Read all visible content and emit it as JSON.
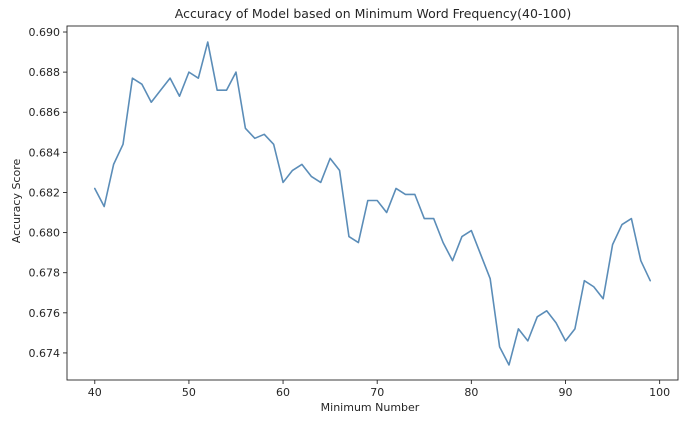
{
  "chart_data": {
    "type": "line",
    "title": "Accuracy of Model based on Minimum Word Frequency(40-100)",
    "xlabel": "Minimum Number",
    "ylabel": "Accuracy Score",
    "xlim": [
      37.05,
      101.95
    ],
    "ylim": [
      0.67265,
      0.6903
    ],
    "xticks": [
      40,
      50,
      60,
      70,
      80,
      90,
      100
    ],
    "yticks": [
      0.674,
      0.676,
      0.678,
      0.68,
      0.682,
      0.684,
      0.686,
      0.688,
      0.69
    ],
    "ytick_labels": [
      "0.674",
      "0.676",
      "0.678",
      "0.680",
      "0.682",
      "0.684",
      "0.686",
      "0.688",
      "0.690"
    ],
    "grid": false,
    "line_color": "#5b8db8",
    "series": [
      {
        "x": [
          40,
          41,
          42,
          43,
          44,
          45,
          46,
          47,
          48,
          49,
          50,
          51,
          52,
          53,
          54,
          55,
          56,
          57,
          58,
          59,
          60,
          61,
          62,
          63,
          64,
          65,
          66,
          67,
          68,
          69,
          70,
          71,
          72,
          73,
          74,
          75,
          76,
          77,
          78,
          79,
          80,
          81,
          82,
          83,
          84,
          85,
          86,
          87,
          88,
          89,
          90,
          91,
          92,
          93,
          94,
          95,
          96,
          97,
          98,
          99
        ],
        "values": [
          0.6822,
          0.6813,
          0.6834,
          0.6844,
          0.6877,
          0.6874,
          0.6865,
          0.6871,
          0.6877,
          0.6868,
          0.688,
          0.6877,
          0.6895,
          0.6871,
          0.6871,
          0.688,
          0.6852,
          0.6847,
          0.6849,
          0.6844,
          0.6825,
          0.6831,
          0.6834,
          0.6828,
          0.6825,
          0.6837,
          0.6831,
          0.6798,
          0.6795,
          0.6816,
          0.6816,
          0.681,
          0.6822,
          0.6819,
          0.6819,
          0.6807,
          0.6807,
          0.6795,
          0.6786,
          0.6798,
          0.6801,
          0.6789,
          0.6777,
          0.6743,
          0.6734,
          0.6752,
          0.6746,
          0.6758,
          0.6761,
          0.6755,
          0.6746,
          0.6752,
          0.6776,
          0.6773,
          0.6767,
          0.6794,
          0.6804,
          0.6807,
          0.6786,
          0.6776
        ]
      }
    ]
  }
}
